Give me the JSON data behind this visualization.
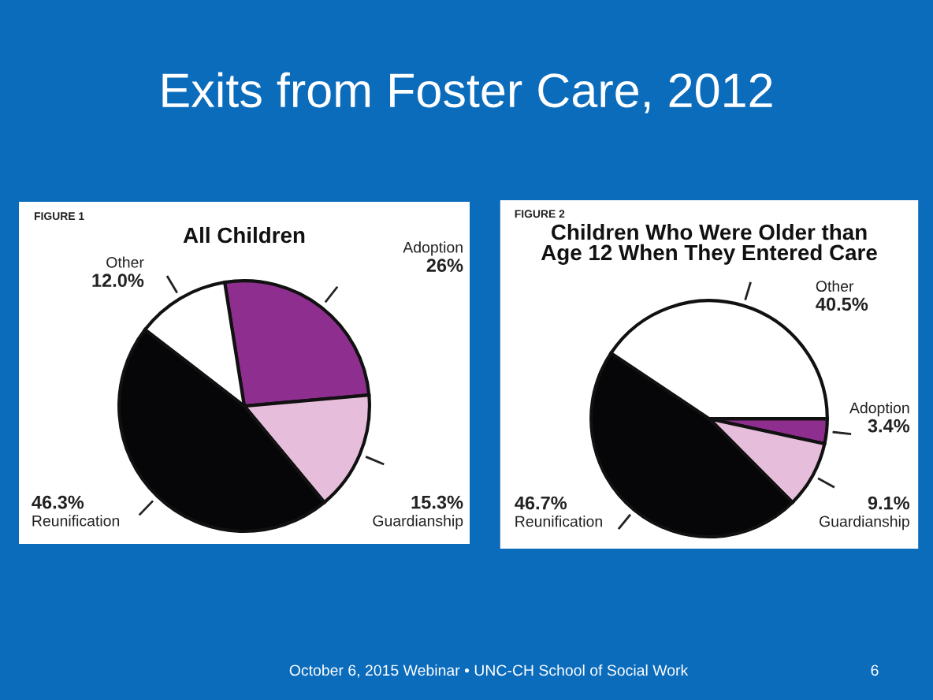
{
  "chart_data": [
    {
      "type": "pie",
      "title": "All Children",
      "categories": [
        "Adoption",
        "Guardianship",
        "Reunification",
        "Other"
      ],
      "values": [
        26,
        15.3,
        46.3,
        12.0
      ],
      "value_labels": [
        "26%",
        "15.3%",
        "46.3%",
        "12.0%"
      ],
      "colors": [
        "#8e2f8f",
        "#e6bddb",
        "#060608",
        "#ffffff"
      ],
      "legend": false,
      "annotations": [
        "FIGURE 1",
        "Exits from Foster Care, 2012",
        "October 6, 2015 Webinar • UNC-CH School of Social Work",
        "6"
      ]
    },
    {
      "type": "pie",
      "title": "Children Who Were Older than\nAge 12 When They Entered Care",
      "categories": [
        "Adoption",
        "Guardianship",
        "Reunification",
        "Other"
      ],
      "values": [
        3.4,
        9.1,
        46.7,
        40.5
      ],
      "value_labels": [
        "3.4%",
        "9.1%",
        "46.7%",
        "40.5%"
      ],
      "colors": [
        "#8e2f8f",
        "#e6bddb",
        "#060608",
        "#ffffff"
      ],
      "legend": false,
      "annotations": [
        "FIGURE 2"
      ]
    }
  ]
}
